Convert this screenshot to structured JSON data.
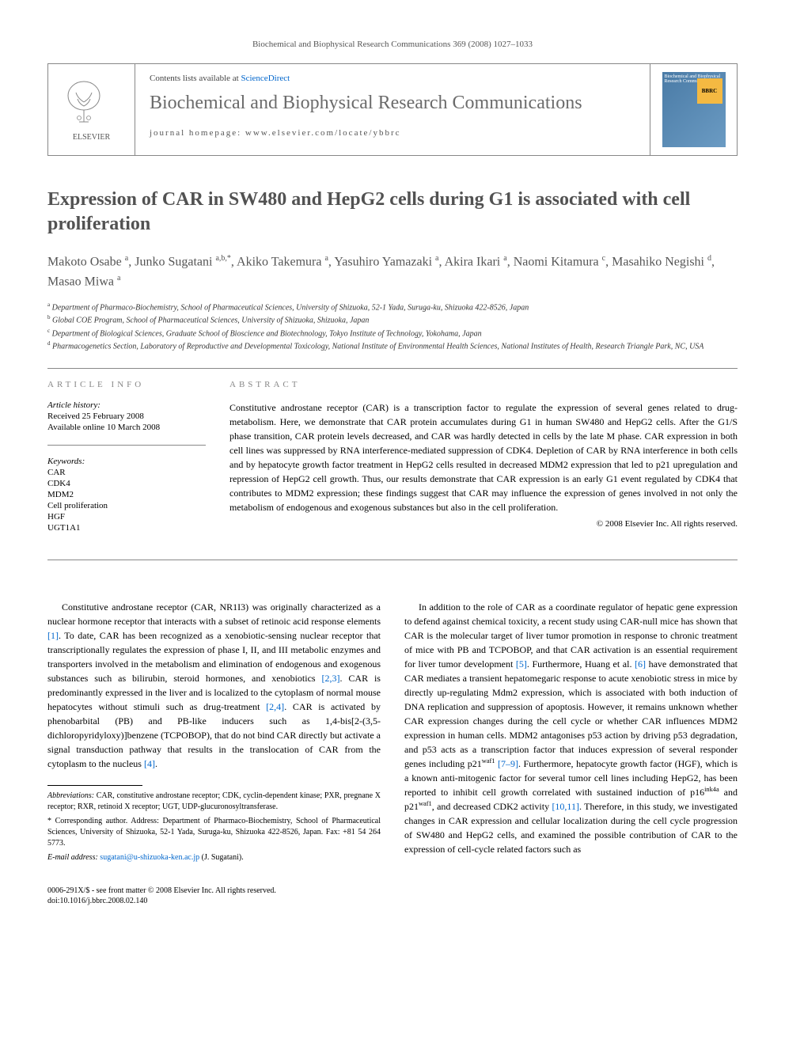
{
  "running_head": "Biochemical and Biophysical Research Communications 369 (2008) 1027–1033",
  "header": {
    "contents_prefix": "Contents lists available at ",
    "contents_link": "ScienceDirect",
    "journal_title": "Biochemical and Biophysical Research Communications",
    "homepage_prefix": "journal homepage: ",
    "homepage_url": "www.elsevier.com/locate/ybbrc",
    "elsevier_label": "ELSEVIER",
    "bbrc_cover_text": "Biochemical and Biophysical Research Communications",
    "bbrc_badge": "BBRC"
  },
  "title": "Expression of CAR in SW480 and HepG2 cells during G1 is associated with cell proliferation",
  "authors_html": "Makoto Osabe <sup>a</sup>, Junko Sugatani <sup>a,b,*</sup>, Akiko Takemura <sup>a</sup>, Yasuhiro Yamazaki <sup>a</sup>, Akira Ikari <sup>a</sup>, Naomi Kitamura <sup>c</sup>, Masahiko Negishi <sup>d</sup>, Masao Miwa <sup>a</sup>",
  "affiliations": [
    {
      "sup": "a",
      "text": "Department of Pharmaco-Biochemistry, School of Pharmaceutical Sciences, University of Shizuoka, 52-1 Yada, Suruga-ku, Shizuoka 422-8526, Japan"
    },
    {
      "sup": "b",
      "text": "Global COE Program, School of Pharmaceutical Sciences, University of Shizuoka, Shizuoka, Japan"
    },
    {
      "sup": "c",
      "text": "Department of Biological Sciences, Graduate School of Bioscience and Biotechnology, Tokyo Institute of Technology, Yokohama, Japan"
    },
    {
      "sup": "d",
      "text": "Pharmacogenetics Section, Laboratory of Reproductive and Developmental Toxicology, National Institute of Environmental Health Sciences, National Institutes of Health, Research Triangle Park, NC, USA"
    }
  ],
  "article_info": {
    "head": "ARTICLE INFO",
    "history_label": "Article history:",
    "received": "Received 25 February 2008",
    "online": "Available online 10 March 2008",
    "keywords_label": "Keywords:",
    "keywords": [
      "CAR",
      "CDK4",
      "MDM2",
      "Cell proliferation",
      "HGF",
      "UGT1A1"
    ]
  },
  "abstract": {
    "head": "ABSTRACT",
    "text": "Constitutive androstane receptor (CAR) is a transcription factor to regulate the expression of several genes related to drug-metabolism. Here, we demonstrate that CAR protein accumulates during G1 in human SW480 and HepG2 cells. After the G1/S phase transition, CAR protein levels decreased, and CAR was hardly detected in cells by the late M phase. CAR expression in both cell lines was suppressed by RNA interference-mediated suppression of CDK4. Depletion of CAR by RNA interference in both cells and by hepatocyte growth factor treatment in HepG2 cells resulted in decreased MDM2 expression that led to p21 upregulation and repression of HepG2 cell growth. Thus, our results demonstrate that CAR expression is an early G1 event regulated by CDK4 that contributes to MDM2 expression; these findings suggest that CAR may influence the expression of genes involved in not only the metabolism of endogenous and exogenous substances but also in the cell proliferation.",
    "copyright": "© 2008 Elsevier Inc. All rights reserved."
  },
  "body": {
    "col1_p1": "Constitutive androstane receptor (CAR, NR1I3) was originally characterized as a nuclear hormone receptor that interacts with a subset of retinoic acid response elements [1]. To date, CAR has been recognized as a xenobiotic-sensing nuclear receptor that transcriptionally regulates the expression of phase I, II, and III metabolic enzymes and transporters involved in the metabolism and elimination of endogenous and exogenous substances such as bilirubin, steroid hormones, and xenobiotics [2,3]. CAR is predominantly expressed in the liver and is localized to the cytoplasm of normal mouse hepatocytes without stimuli such as drug-treatment [2,4]. CAR is activated by phenobarbital (PB) and PB-like inducers such as 1,4-bis[2-(3,5-dichloropyridyloxy)]benzene (TCPOBOP), that do not bind CAR directly but activate a signal transduction pathway that results in the translocation of CAR from the cytoplasm to the nucleus [4].",
    "col2_p1": "In addition to the role of CAR as a coordinate regulator of hepatic gene expression to defend against chemical toxicity, a recent study using CAR-null mice has shown that CAR is the molecular target of liver tumor promotion in response to chronic treatment of mice with PB and TCPOBOP, and that CAR activation is an essential requirement for liver tumor development [5]. Furthermore, Huang et al. [6] have demonstrated that CAR mediates a transient hepatomegaric response to acute xenobiotic stress in mice by directly up-regulating Mdm2 expression, which is associated with both induction of DNA replication and suppression of apoptosis. However, it remains unknown whether CAR expression changes during the cell cycle or whether CAR influences MDM2 expression in human cells. MDM2 antagonises p53 action by driving p53 degradation, and p53 acts as a transcription factor that induces expression of several responder genes including p21waf1 [7–9]. Furthermore, hepatocyte growth factor (HGF), which is a known anti-mitogenic factor for several tumor cell lines including HepG2, has been reported to inhibit cell growth correlated with sustained induction of p16ink4a and p21waf1, and decreased CDK2 activity [10,11]. Therefore, in this study, we investigated changes in CAR expression and cellular localization during the cell cycle progression of SW480 and HepG2 cells, and examined the possible contribution of CAR to the expression of cell-cycle related factors such as"
  },
  "footnotes": {
    "abbrev_label": "Abbreviations:",
    "abbrev_text": " CAR, constitutive androstane receptor; CDK, cyclin-dependent kinase; PXR, pregnane X receptor; RXR, retinoid X receptor; UGT, UDP-glucuronosyltransferase.",
    "corr_label": "* Corresponding author.",
    "corr_text": " Address: Department of Pharmaco-Biochemistry, School of Pharmaceutical Sciences, University of Shizuoka, 52-1 Yada, Suruga-ku, Shizuoka 422-8526, Japan. Fax: +81 54 264 5773.",
    "email_label": "E-mail address:",
    "email_value": "sugatani@u-shizuoka-ken.ac.jp",
    "email_suffix": " (J. Sugatani)."
  },
  "footer": {
    "line1": "0006-291X/$ - see front matter © 2008 Elsevier Inc. All rights reserved.",
    "line2": "doi:10.1016/j.bbrc.2008.02.140"
  },
  "refs": {
    "r1": "[1]",
    "r23": "[2,3]",
    "r24": "[2,4]",
    "r4": "[4]",
    "r5": "[5]",
    "r6": "[6]",
    "r79": "[7–9]",
    "r1011": "[10,11]"
  },
  "colors": {
    "link": "#0066cc",
    "heading_gray": "#525252",
    "rule": "#888888"
  }
}
